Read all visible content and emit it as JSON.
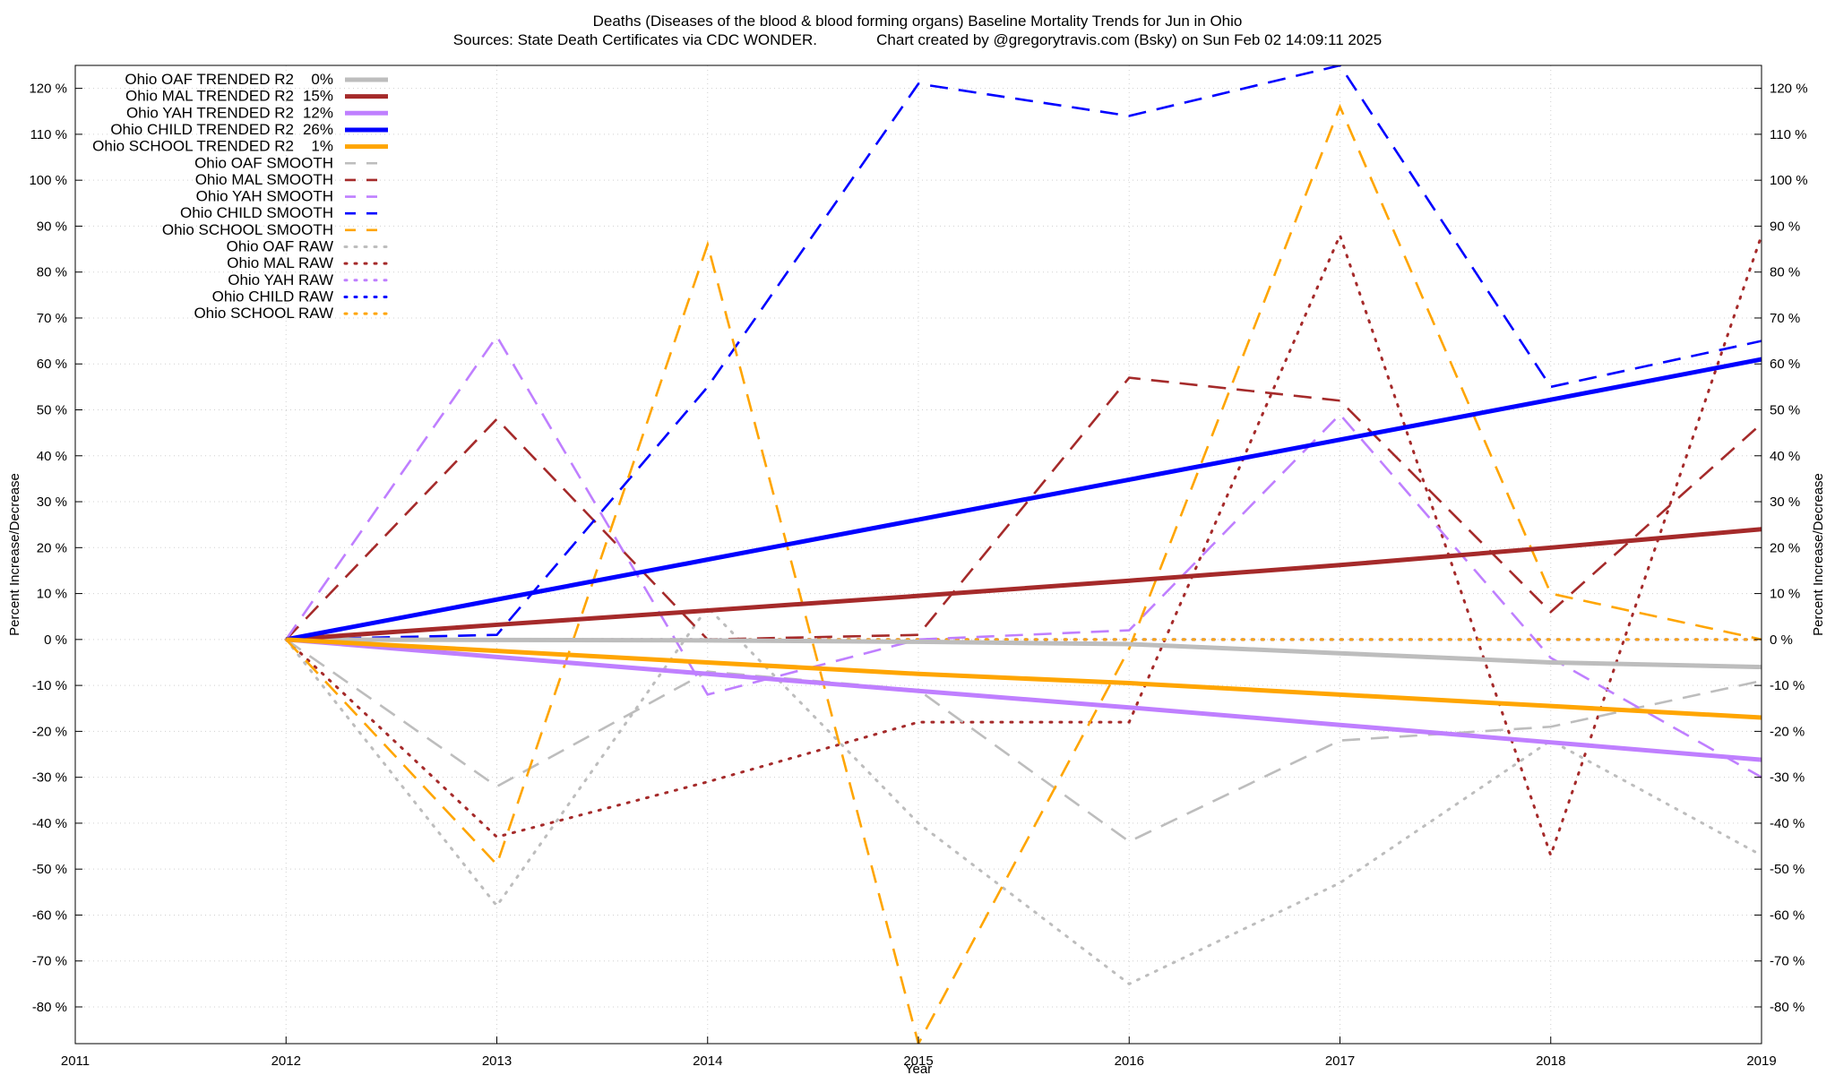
{
  "colors": {
    "oaf": "#bdbdbd",
    "mal": "#a52a2a",
    "yah": "#bf7fff",
    "child": "#0000ff",
    "school": "#ffa500",
    "grid": "#d0d0d0",
    "background": "#ffffff"
  },
  "chart_data": {
    "type": "line",
    "title": "Deaths (Diseases of the blood & blood forming organs)  Baseline Mortality Trends for Jun in Ohio",
    "subtitle": "Sources: State Death Certificates via CDC WONDER.              Chart created by @gregorytravis.com (Bsky) on Sun Feb 02 14:09:11 2025",
    "xlabel": "Year",
    "ylabel_left": "Percent Increase/Decrease",
    "ylabel_right": "Percent Increase/Decrease",
    "xlim": [
      2011,
      2019
    ],
    "ylim": [
      -88,
      125
    ],
    "x_ticks": [
      2011,
      2012,
      2013,
      2014,
      2015,
      2016,
      2017,
      2018,
      2019
    ],
    "x_tick_labels": [
      "2011",
      "2012",
      "2013",
      "2014",
      "2015",
      "2016",
      "2017",
      "2018",
      "2019"
    ],
    "y_ticks": [
      120,
      110,
      100,
      90,
      80,
      70,
      60,
      50,
      40,
      30,
      20,
      10,
      0,
      -10,
      -20,
      -30,
      -40,
      -50,
      -60,
      -70,
      -80
    ],
    "y_tick_labels": [
      "120 %",
      "110 %",
      "100 %",
      "90 %",
      "80 %",
      "70 %",
      "60 %",
      "50 %",
      "40 %",
      "30 %",
      "20 %",
      "10 %",
      "0 %",
      "-10 %",
      "-20 %",
      "-30 %",
      "-40 %",
      "-50 %",
      "-60 %",
      "-70 %",
      "-80 %"
    ],
    "grid": true,
    "legend_position": "top-left",
    "x": [
      2012,
      2013,
      2014,
      2015,
      2016,
      2017,
      2018,
      2019
    ],
    "series": [
      {
        "name": "Ohio OAF TRENDED R2",
        "r2": "0%",
        "color_key": "oaf",
        "style": "solid",
        "values": [
          0,
          -0.1,
          -0.2,
          -0.5,
          -1,
          -3,
          -5,
          -6
        ]
      },
      {
        "name": "Ohio MAL TRENDED R2",
        "r2": "15%",
        "color_key": "mal",
        "style": "solid",
        "values": [
          0,
          3.2,
          6.3,
          9.5,
          12.8,
          16.2,
          20,
          24
        ]
      },
      {
        "name": "Ohio YAH TRENDED R2",
        "r2": "12%",
        "color_key": "yah",
        "style": "solid",
        "values": [
          0,
          -3.8,
          -7.5,
          -11.2,
          -14.8,
          -18.6,
          -22.4,
          -26.2
        ]
      },
      {
        "name": "Ohio CHILD TRENDED R2",
        "r2": "26%",
        "color_key": "child",
        "style": "solid",
        "values": [
          0,
          8.7,
          17.4,
          26.1,
          34.8,
          43.5,
          52.2,
          61
        ]
      },
      {
        "name": "Ohio SCHOOL TRENDED R2",
        "r2": "1%",
        "color_key": "school",
        "style": "solid",
        "values": [
          0,
          -2.5,
          -5,
          -7.5,
          -9.5,
          -12,
          -14.5,
          -17
        ]
      },
      {
        "name": "Ohio OAF SMOOTH",
        "r2": "",
        "color_key": "oaf",
        "style": "dashed",
        "values": [
          0,
          -32,
          -7,
          -11,
          -44,
          -22,
          -19,
          -9
        ]
      },
      {
        "name": "Ohio MAL SMOOTH",
        "r2": "",
        "color_key": "mal",
        "style": "dashed",
        "values": [
          0,
          48,
          0,
          1,
          57,
          52,
          6,
          47
        ]
      },
      {
        "name": "Ohio YAH SMOOTH",
        "r2": "",
        "color_key": "yah",
        "style": "dashed",
        "values": [
          0,
          66,
          -12,
          0,
          2,
          49,
          -4,
          -30
        ]
      },
      {
        "name": "Ohio CHILD SMOOTH",
        "r2": "",
        "color_key": "child",
        "style": "dashed",
        "values": [
          0,
          1,
          55,
          121,
          114,
          125,
          55,
          65
        ]
      },
      {
        "name": "Ohio SCHOOL SMOOTH",
        "r2": "",
        "color_key": "school",
        "style": "dashed",
        "values": [
          0,
          -49,
          86,
          -88,
          -2,
          116,
          10,
          0
        ]
      },
      {
        "name": "Ohio OAF RAW",
        "r2": "",
        "color_key": "oaf",
        "style": "dotted",
        "values": [
          0,
          -58,
          7,
          -40,
          -75,
          -53,
          -22,
          -47
        ]
      },
      {
        "name": "Ohio MAL RAW",
        "r2": "",
        "color_key": "mal",
        "style": "dotted",
        "values": [
          0,
          -43,
          -31,
          -18,
          -18,
          88,
          -47,
          88
        ]
      },
      {
        "name": "Ohio YAH RAW",
        "r2": "",
        "color_key": "yah",
        "style": "dotted",
        "values": [
          0,
          0,
          0,
          0,
          0,
          0,
          0,
          0
        ]
      },
      {
        "name": "Ohio CHILD RAW",
        "r2": "",
        "color_key": "child",
        "style": "dotted",
        "values": [
          0,
          0,
          0,
          0,
          0,
          0,
          0,
          0
        ]
      },
      {
        "name": "Ohio SCHOOL RAW",
        "r2": "",
        "color_key": "school",
        "style": "dotted",
        "values": [
          0,
          0,
          0,
          0,
          0,
          0,
          0,
          0
        ]
      }
    ]
  }
}
